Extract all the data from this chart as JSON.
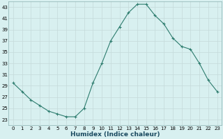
{
  "x": [
    0,
    1,
    2,
    3,
    4,
    5,
    6,
    7,
    8,
    9,
    10,
    11,
    12,
    13,
    14,
    15,
    16,
    17,
    18,
    19,
    20,
    21,
    22,
    23
  ],
  "y": [
    29.5,
    28.0,
    26.5,
    25.5,
    24.5,
    24.0,
    23.5,
    23.5,
    25.0,
    29.5,
    33.0,
    37.0,
    39.5,
    42.0,
    43.5,
    43.5,
    41.5,
    40.0,
    37.5,
    36.0,
    35.5,
    33.0,
    30.0,
    28.0
  ],
  "xlabel": "Humidex (Indice chaleur)",
  "line_color": "#2d7c6e",
  "marker_color": "#2d7c6e",
  "bg_color": "#d8f0f0",
  "grid_color": "#c4dada",
  "xlim": [
    -0.5,
    23.5
  ],
  "ylim": [
    22.0,
    44.0
  ],
  "yticks": [
    23,
    25,
    27,
    29,
    31,
    33,
    35,
    37,
    39,
    41,
    43
  ],
  "xticks": [
    0,
    1,
    2,
    3,
    4,
    5,
    6,
    7,
    8,
    9,
    10,
    11,
    12,
    13,
    14,
    15,
    16,
    17,
    18,
    19,
    20,
    21,
    22,
    23
  ],
  "tick_fontsize": 5.0,
  "xlabel_fontsize": 6.5,
  "xlabel_color": "#1a4a60",
  "spine_color": "#8ab0b0",
  "linewidth": 0.8,
  "markersize": 3.0,
  "markeredgewidth": 0.8
}
